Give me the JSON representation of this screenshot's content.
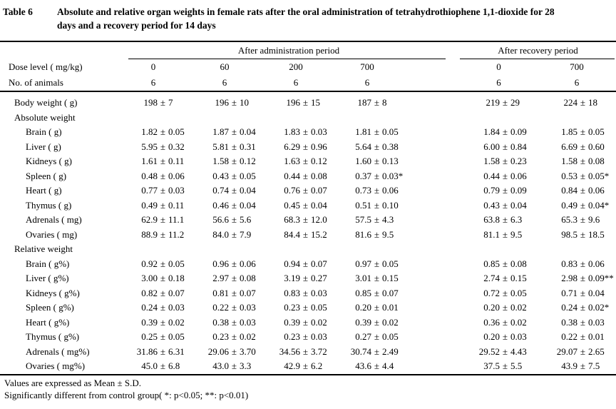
{
  "title": {
    "label": "Table 6",
    "caption": "Absolute and relative organ weights in female rats after the oral administration of tetrahydrothiophene 1,1-dioxide for 28 days and a recovery period for 14 days"
  },
  "table": {
    "groups": [
      {
        "label": "After administration period"
      },
      {
        "label": "After recovery period"
      }
    ],
    "header_rows": [
      {
        "label": "Dose level ( mg/kg)",
        "values": [
          "0",
          "60",
          "200",
          "700",
          "0",
          "700"
        ]
      },
      {
        "label": "No. of animals",
        "values": [
          "6",
          "6",
          "6",
          "6",
          "6",
          "6"
        ]
      }
    ],
    "rows": [
      {
        "label": "Body weight ( g)",
        "indent": 1,
        "section": false,
        "values": [
          "198 ± 7",
          "196 ± 10",
          "196 ± 15",
          "187 ± 8",
          "219 ± 29",
          "224 ± 18"
        ]
      },
      {
        "label": "Absolute weight",
        "indent": 1,
        "section": true,
        "values": []
      },
      {
        "label": "Brain ( g)",
        "indent": 2,
        "section": false,
        "values": [
          "1.82 ± 0.05",
          "1.87 ± 0.04",
          "1.83 ± 0.03",
          "1.81 ± 0.05",
          "1.84 ± 0.09",
          "1.85 ± 0.05"
        ]
      },
      {
        "label": "Liver ( g)",
        "indent": 2,
        "section": false,
        "values": [
          "5.95 ± 0.32",
          "5.81 ± 0.31",
          "6.29 ± 0.96",
          "5.64 ± 0.38",
          "6.00 ± 0.84",
          "6.69 ± 0.60"
        ]
      },
      {
        "label": "Kidneys ( g)",
        "indent": 2,
        "section": false,
        "values": [
          "1.61 ± 0.11",
          "1.58 ± 0.12",
          "1.63 ± 0.12",
          "1.60 ± 0.13",
          "1.58 ± 0.23",
          "1.58 ± 0.08"
        ]
      },
      {
        "label": "Spleen ( g)",
        "indent": 2,
        "section": false,
        "values": [
          "0.48 ± 0.06",
          "0.43 ± 0.05",
          "0.44 ± 0.08",
          "0.37 ± 0.03*",
          "0.44 ± 0.06",
          "0.53 ± 0.05*"
        ]
      },
      {
        "label": "Heart ( g)",
        "indent": 2,
        "section": false,
        "values": [
          "0.77 ± 0.03",
          "0.74 ± 0.04",
          "0.76 ± 0.07",
          "0.73 ± 0.06",
          "0.79 ± 0.09",
          "0.84 ± 0.06"
        ]
      },
      {
        "label": "Thymus ( g)",
        "indent": 2,
        "section": false,
        "values": [
          "0.49 ± 0.11",
          "0.46 ± 0.04",
          "0.45 ± 0.04",
          "0.51 ± 0.10",
          "0.43 ± 0.04",
          "0.49 ± 0.04*"
        ]
      },
      {
        "label": "Adrenals ( mg)",
        "indent": 2,
        "section": false,
        "values": [
          "62.9 ± 11.1",
          "56.6 ± 5.6",
          "68.3 ± 12.0",
          "57.5 ± 4.3",
          "63.8 ± 6.3",
          "65.3 ± 9.6"
        ]
      },
      {
        "label": "Ovaries ( mg)",
        "indent": 2,
        "section": false,
        "values": [
          "88.9 ± 11.2",
          "84.0 ± 7.9",
          "84.4 ± 15.2",
          "81.6 ± 9.5",
          "81.1 ± 9.5",
          "98.5 ± 18.5"
        ]
      },
      {
        "label": "Relative weight",
        "indent": 1,
        "section": true,
        "values": []
      },
      {
        "label": "Brain ( g%)",
        "indent": 2,
        "section": false,
        "values": [
          "0.92 ± 0.05",
          "0.96 ± 0.06",
          "0.94 ± 0.07",
          "0.97 ± 0.05",
          "0.85 ± 0.08",
          "0.83 ± 0.06"
        ]
      },
      {
        "label": "Liver ( g%)",
        "indent": 2,
        "section": false,
        "values": [
          "3.00 ± 0.18",
          "2.97 ± 0.08",
          "3.19 ± 0.27",
          "3.01 ± 0.15",
          "2.74 ± 0.15",
          "2.98 ± 0.09**"
        ]
      },
      {
        "label": "Kidneys ( g%)",
        "indent": 2,
        "section": false,
        "values": [
          "0.82 ± 0.07",
          "0.81 ± 0.07",
          "0.83 ± 0.03",
          "0.85 ± 0.07",
          "0.72 ± 0.05",
          "0.71 ± 0.04"
        ]
      },
      {
        "label": "Spleen ( g%)",
        "indent": 2,
        "section": false,
        "values": [
          "0.24 ± 0.03",
          "0.22 ± 0.03",
          "0.23 ± 0.05",
          "0.20 ± 0.01",
          "0.20 ± 0.02",
          "0.24 ± 0.02*"
        ]
      },
      {
        "label": "Heart ( g%)",
        "indent": 2,
        "section": false,
        "values": [
          "0.39 ± 0.02",
          "0.38 ± 0.03",
          "0.39 ± 0.02",
          "0.39 ± 0.02",
          "0.36 ± 0.02",
          "0.38 ± 0.03"
        ]
      },
      {
        "label": "Thymus ( g%)",
        "indent": 2,
        "section": false,
        "values": [
          "0.25 ± 0.05",
          "0.23 ± 0.02",
          "0.23 ± 0.03",
          "0.27 ± 0.05",
          "0.20 ± 0.03",
          "0.22 ± 0.01"
        ]
      },
      {
        "label": "Adrenals ( mg%)",
        "indent": 2,
        "section": false,
        "values": [
          "31.86 ± 6.31",
          "29.06 ± 3.70",
          "34.56 ± 3.72",
          "30.74 ± 2.49",
          "29.52 ± 4.43",
          "29.07 ± 2.65"
        ]
      },
      {
        "label": "Ovaries ( mg%)",
        "indent": 2,
        "section": false,
        "values": [
          "45.0 ± 6.8",
          "43.0 ± 3.3",
          "42.9 ± 6.2",
          "43.6 ± 4.4",
          "37.5 ± 5.5",
          "43.9 ± 7.5"
        ]
      }
    ]
  },
  "footnotes": [
    "Values are expressed as Mean ± S.D.",
    "Significantly different from control group( *: p<0.05;  **: p<0.01)"
  ]
}
